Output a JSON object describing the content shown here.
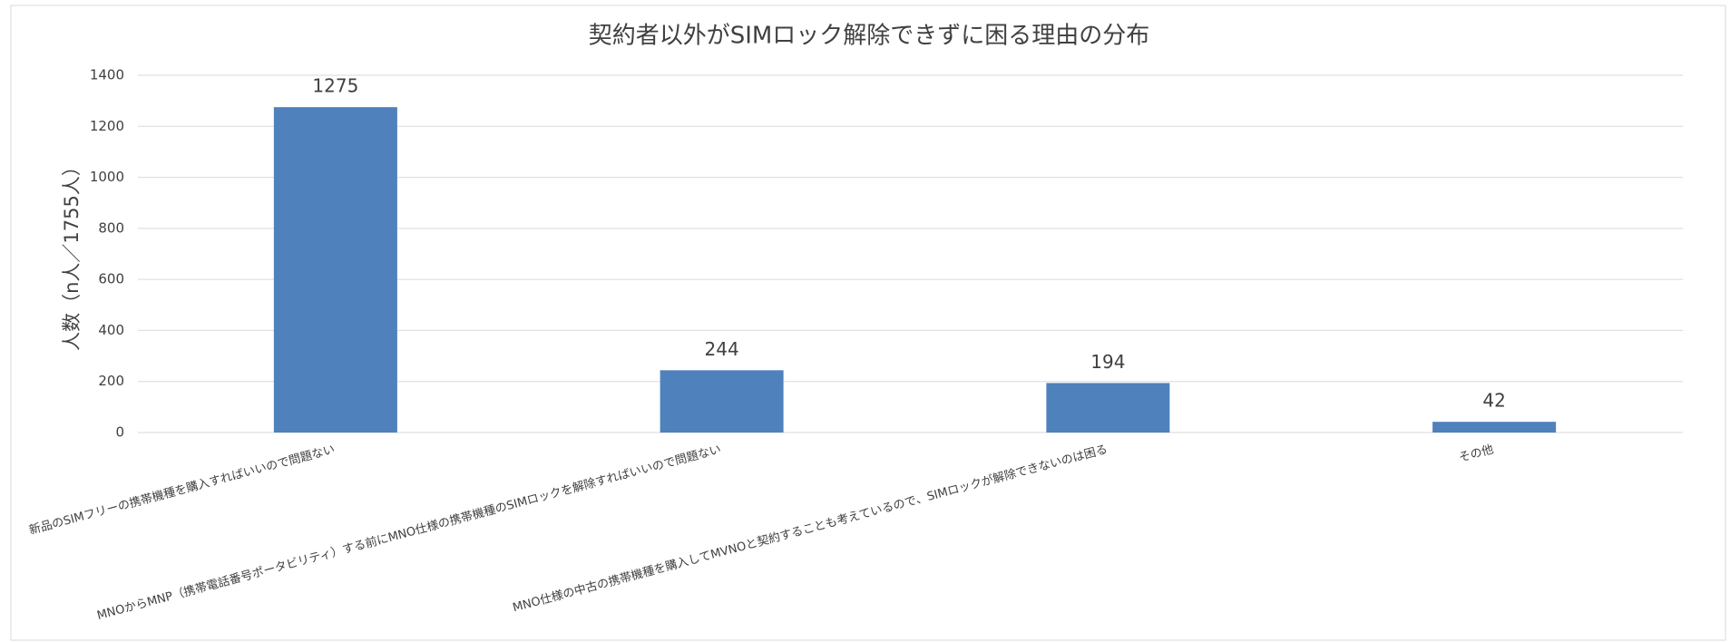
{
  "chart_data": {
    "type": "bar",
    "title": "契約者以外がSIMロック解除できずに困る理由の分布",
    "y_label": "人数（n人／1755人）",
    "categories": [
      "新品のSIMフリーの携帯機種を購入すればいいので問題ない",
      "MNOからMNP（携帯電話番号ポータビリティ）する前にMNO仕様の携帯機種のSIMロックを解除すればいいので問題ない",
      "MNO仕様の中古の携帯機種を購入してMVNOと契約することも考えているので、SIMロックが解除できないのは困る",
      "その他"
    ],
    "values": [
      1275,
      244,
      194,
      42
    ],
    "color": "#4f81bd",
    "ylim": [
      0,
      1400
    ],
    "yticks": [
      0,
      200,
      400,
      600,
      800,
      1000,
      1200,
      1400
    ],
    "grid": true
  }
}
